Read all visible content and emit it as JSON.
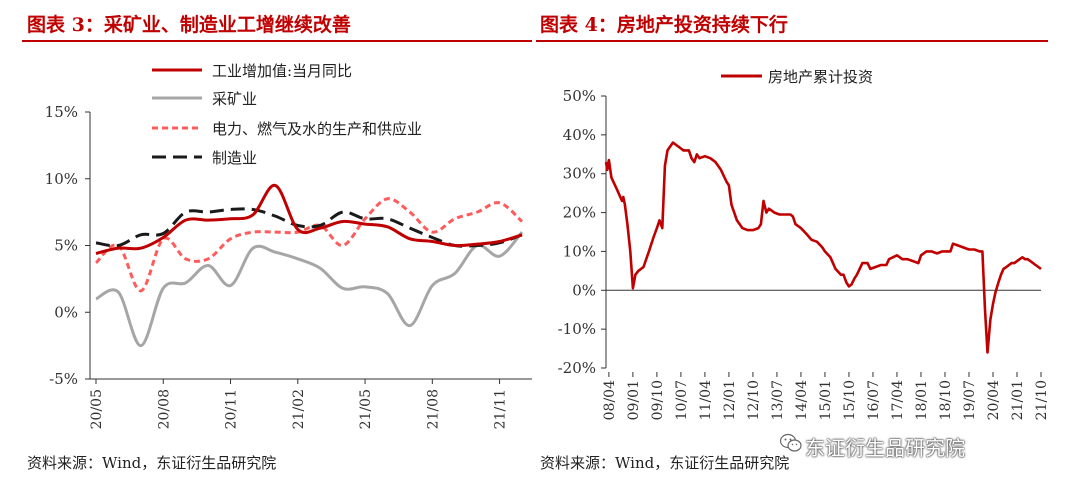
{
  "left": {
    "title": "图表 3：采矿业、制造业工增继续改善",
    "source": "资料来源：Wind，东证衍生品研究院"
  },
  "right": {
    "title": "图表 4：房地产投资持续下行",
    "source": "资料来源：Wind，东证衍生品研究院"
  },
  "watermark": {
    "text": "东证衍生品研究院",
    "icon": "wechat-icon"
  },
  "chart_data": [
    {
      "type": "line",
      "ylim": [
        -5,
        15
      ],
      "yticks": [
        -5,
        0,
        5,
        10,
        15
      ],
      "ytick_labels": [
        "-5%",
        "0%",
        "5%",
        "10%",
        "15%"
      ],
      "x": [
        "20/05",
        "20/06",
        "20/07",
        "20/08",
        "20/09",
        "20/10",
        "20/11",
        "20/12",
        "21/01",
        "21/02",
        "21/03",
        "21/04",
        "21/05",
        "21/06",
        "21/07",
        "21/08",
        "21/09",
        "21/10",
        "21/11",
        "21/12"
      ],
      "xtick_labels": [
        "20/05",
        "20/08",
        "20/11",
        "21/02",
        "21/05",
        "21/08",
        "21/11"
      ],
      "legend_position": "top-center",
      "series": [
        {
          "name": "工业增加值:当月同比",
          "color": "#c00000",
          "style": "solid",
          "values": [
            4.4,
            4.8,
            4.8,
            5.6,
            6.9,
            6.9,
            7.0,
            7.3,
            9.5,
            6.2,
            6.3,
            6.8,
            6.6,
            6.4,
            5.5,
            5.3,
            5.0,
            5.1,
            5.3,
            5.8
          ]
        },
        {
          "name": "采矿业",
          "color": "#a6a6a6",
          "style": "solid",
          "values": [
            1.0,
            1.5,
            -2.5,
            1.8,
            2.2,
            3.5,
            2.0,
            4.8,
            4.5,
            4.0,
            3.3,
            1.8,
            1.9,
            1.4,
            -1.0,
            2.0,
            2.9,
            5.0,
            4.2,
            6.0
          ]
        },
        {
          "name": "电力、燃气及水的生产和供应业",
          "color": "#ff5b5b",
          "style": "dotted",
          "values": [
            3.7,
            5.0,
            1.6,
            5.5,
            4.0,
            4.0,
            5.5,
            6.0,
            6.0,
            6.0,
            6.5,
            5.0,
            7.0,
            8.5,
            7.5,
            6.0,
            7.0,
            7.5,
            8.2,
            6.8
          ]
        },
        {
          "name": "制造业",
          "color": "#1a1a1a",
          "style": "dashed",
          "values": [
            5.2,
            5.0,
            5.8,
            5.9,
            7.5,
            7.5,
            7.7,
            7.7,
            7.2,
            6.5,
            6.5,
            7.5,
            7.0,
            7.0,
            6.3,
            5.6,
            5.0,
            5.0,
            5.2,
            5.8
          ]
        }
      ]
    },
    {
      "type": "line",
      "ylim": [
        -20,
        50
      ],
      "yticks": [
        -20,
        -10,
        0,
        10,
        20,
        30,
        40,
        50
      ],
      "ytick_labels": [
        "-20%",
        "-10%",
        "0%",
        "10%",
        "20%",
        "30%",
        "40%",
        "50%"
      ],
      "x_range": [
        2008.16,
        2021.75
      ],
      "xtick_labels": [
        "08/04",
        "09/01",
        "09/10",
        "10/07",
        "11/04",
        "12/01",
        "12/10",
        "13/07",
        "14/04",
        "15/01",
        "15/10",
        "16/07",
        "17/04",
        "18/01",
        "18/10",
        "19/07",
        "20/04",
        "21/01",
        "21/10"
      ],
      "xtick_positions": [
        2008.25,
        2009.0,
        2009.75,
        2010.5,
        2011.25,
        2012.0,
        2012.75,
        2013.5,
        2014.25,
        2015.0,
        2015.75,
        2016.5,
        2017.25,
        2018.0,
        2018.75,
        2019.5,
        2020.25,
        2021.0,
        2021.75
      ],
      "legend_position": "top-left",
      "series": [
        {
          "name": "房地产累计投资",
          "color": "#c00000",
          "style": "solid",
          "points": [
            [
              2008.16,
              33
            ],
            [
              2008.2,
              31
            ],
            [
              2008.25,
              33.5
            ],
            [
              2008.33,
              29
            ],
            [
              2008.5,
              26
            ],
            [
              2008.66,
              23
            ],
            [
              2008.7,
              24
            ],
            [
              2008.75,
              22
            ],
            [
              2008.83,
              17
            ],
            [
              2008.92,
              10
            ],
            [
              2009.0,
              0.5
            ],
            [
              2009.08,
              4
            ],
            [
              2009.17,
              5
            ],
            [
              2009.33,
              6
            ],
            [
              2009.5,
              10
            ],
            [
              2009.66,
              14
            ],
            [
              2009.75,
              16
            ],
            [
              2009.83,
              18
            ],
            [
              2009.92,
              16
            ],
            [
              2010.0,
              32
            ],
            [
              2010.08,
              36
            ],
            [
              2010.25,
              38
            ],
            [
              2010.42,
              37
            ],
            [
              2010.58,
              36
            ],
            [
              2010.75,
              36
            ],
            [
              2010.83,
              34
            ],
            [
              2010.92,
              33
            ],
            [
              2011.0,
              35
            ],
            [
              2011.08,
              34
            ],
            [
              2011.25,
              34.5
            ],
            [
              2011.42,
              34
            ],
            [
              2011.58,
              33
            ],
            [
              2011.75,
              31
            ],
            [
              2011.92,
              28
            ],
            [
              2012.0,
              27
            ],
            [
              2012.08,
              22
            ],
            [
              2012.25,
              18
            ],
            [
              2012.42,
              16
            ],
            [
              2012.58,
              15.5
            ],
            [
              2012.75,
              15.5
            ],
            [
              2012.92,
              16
            ],
            [
              2013.0,
              17
            ],
            [
              2013.08,
              23
            ],
            [
              2013.17,
              20
            ],
            [
              2013.25,
              21
            ],
            [
              2013.42,
              20
            ],
            [
              2013.58,
              19.5
            ],
            [
              2013.75,
              19.5
            ],
            [
              2013.92,
              19.5
            ],
            [
              2014.0,
              19
            ],
            [
              2014.08,
              17
            ],
            [
              2014.25,
              16
            ],
            [
              2014.42,
              14.5
            ],
            [
              2014.58,
              13
            ],
            [
              2014.75,
              12.5
            ],
            [
              2014.92,
              11
            ],
            [
              2015.0,
              10
            ],
            [
              2015.17,
              8.5
            ],
            [
              2015.33,
              5.5
            ],
            [
              2015.5,
              4
            ],
            [
              2015.58,
              4
            ],
            [
              2015.67,
              2
            ],
            [
              2015.75,
              1
            ],
            [
              2015.83,
              1.5
            ],
            [
              2015.92,
              3
            ],
            [
              2016.0,
              4
            ],
            [
              2016.17,
              7
            ],
            [
              2016.33,
              7
            ],
            [
              2016.42,
              5.5
            ],
            [
              2016.58,
              6
            ],
            [
              2016.75,
              6.5
            ],
            [
              2016.92,
              6.5
            ],
            [
              2017.0,
              8
            ],
            [
              2017.25,
              9
            ],
            [
              2017.42,
              8
            ],
            [
              2017.58,
              8
            ],
            [
              2017.75,
              7.5
            ],
            [
              2017.92,
              7
            ],
            [
              2018.0,
              9
            ],
            [
              2018.17,
              10
            ],
            [
              2018.33,
              10
            ],
            [
              2018.5,
              9.5
            ],
            [
              2018.67,
              10
            ],
            [
              2018.83,
              10
            ],
            [
              2018.92,
              10
            ],
            [
              2019.0,
              12
            ],
            [
              2019.17,
              11.5
            ],
            [
              2019.33,
              11
            ],
            [
              2019.5,
              10.5
            ],
            [
              2019.67,
              10.5
            ],
            [
              2019.83,
              10
            ],
            [
              2019.92,
              10
            ],
            [
              2020.0,
              -5
            ],
            [
              2020.08,
              -16
            ],
            [
              2020.17,
              -7.5
            ],
            [
              2020.25,
              -3.5
            ],
            [
              2020.33,
              -0.5
            ],
            [
              2020.42,
              2
            ],
            [
              2020.5,
              4
            ],
            [
              2020.58,
              5.5
            ],
            [
              2020.67,
              6
            ],
            [
              2020.75,
              6.5
            ],
            [
              2020.83,
              7
            ],
            [
              2020.92,
              7
            ],
            [
              2021.08,
              8
            ],
            [
              2021.17,
              8.5
            ],
            [
              2021.25,
              8
            ],
            [
              2021.33,
              8
            ],
            [
              2021.42,
              7.5
            ],
            [
              2021.5,
              7
            ],
            [
              2021.58,
              6.5
            ],
            [
              2021.67,
              6
            ],
            [
              2021.75,
              5.5
            ]
          ]
        }
      ]
    }
  ]
}
